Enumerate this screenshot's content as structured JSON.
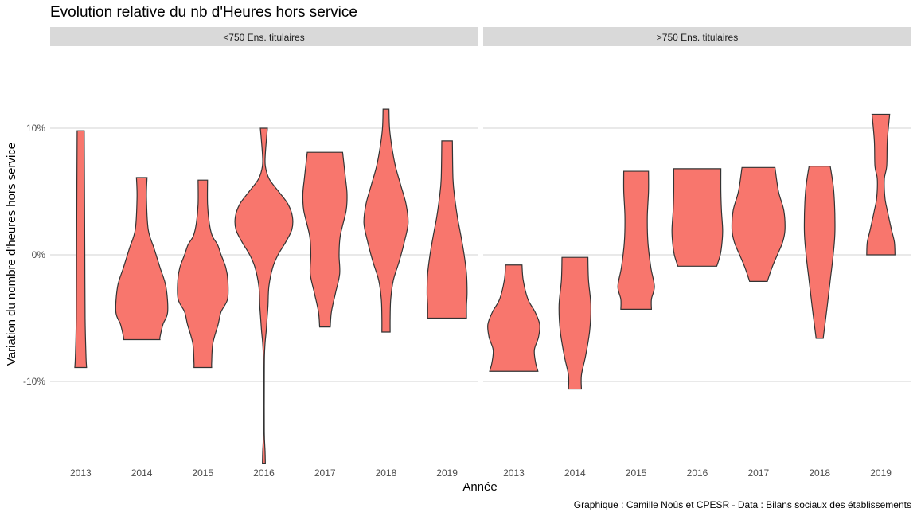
{
  "chart_data": {
    "type": "violin",
    "title": "Evolution relative du nb d'Heures hors service",
    "xlabel": "Année",
    "ylabel": "Variation du nombre d'heures hors service",
    "caption": "Graphique : Camille Noûs et CPESR - Data : Bilans sociaux des établissements",
    "categories": [
      "2013",
      "2014",
      "2015",
      "2016",
      "2017",
      "2018",
      "2019"
    ],
    "y_ticks": [
      {
        "value": 0.1,
        "label": "10%"
      },
      {
        "value": 0.0,
        "label": "0%"
      },
      {
        "value": -0.1,
        "label": "-10%"
      }
    ],
    "ylim": [
      -0.165,
      0.15
    ],
    "grid": true,
    "fill_color": "#f8766d",
    "outline_color": "#333333",
    "panels": [
      {
        "label": "<750 Ens. titulaires",
        "violins": [
          {
            "year": "2013",
            "profile": [
              [
                0.098,
                0.12
              ],
              [
                0.05,
                0.13
              ],
              [
                0,
                0.14
              ],
              [
                -0.05,
                0.15
              ],
              [
                -0.08,
                0.18
              ],
              [
                -0.089,
                0.2
              ]
            ]
          },
          {
            "year": "2014",
            "profile": [
              [
                0.061,
                0.18
              ],
              [
                0.045,
                0.16
              ],
              [
                0.02,
                0.22
              ],
              [
                0.005,
                0.42
              ],
              [
                -0.01,
                0.62
              ],
              [
                -0.025,
                0.82
              ],
              [
                -0.045,
                0.88
              ],
              [
                -0.055,
                0.72
              ],
              [
                -0.065,
                0.62
              ],
              [
                -0.067,
                0.62
              ]
            ]
          },
          {
            "year": "2015",
            "profile": [
              [
                0.059,
                0.16
              ],
              [
                0.04,
                0.16
              ],
              [
                0.025,
                0.22
              ],
              [
                0.015,
                0.32
              ],
              [
                0.008,
                0.5
              ],
              [
                0,
                0.62
              ],
              [
                -0.01,
                0.78
              ],
              [
                -0.02,
                0.85
              ],
              [
                -0.035,
                0.84
              ],
              [
                -0.045,
                0.62
              ],
              [
                -0.055,
                0.52
              ],
              [
                -0.07,
                0.34
              ],
              [
                -0.085,
                0.3
              ],
              [
                -0.089,
                0.3
              ]
            ]
          },
          {
            "year": "2016",
            "profile": [
              [
                0.1,
                0.12
              ],
              [
                0.08,
                0.05
              ],
              [
                0.07,
                0.05
              ],
              [
                0.06,
                0.18
              ],
              [
                0.05,
                0.5
              ],
              [
                0.04,
                0.82
              ],
              [
                0.03,
                0.97
              ],
              [
                0.02,
                0.95
              ],
              [
                0.01,
                0.74
              ],
              [
                0,
                0.48
              ],
              [
                -0.01,
                0.3
              ],
              [
                -0.025,
                0.17
              ],
              [
                -0.04,
                0.14
              ],
              [
                -0.05,
                0.11
              ],
              [
                -0.06,
                0.08
              ],
              [
                -0.07,
                0.04
              ],
              [
                -0.08,
                0.02
              ],
              [
                -0.1,
                0.015
              ],
              [
                -0.14,
                0.015
              ],
              [
                -0.155,
                0.04
              ],
              [
                -0.165,
                0.05
              ]
            ]
          },
          {
            "year": "2017",
            "profile": [
              [
                0.081,
                0.6
              ],
              [
                0.06,
                0.7
              ],
              [
                0.048,
                0.75
              ],
              [
                0.035,
                0.72
              ],
              [
                0.015,
                0.52
              ],
              [
                0,
                0.48
              ],
              [
                -0.015,
                0.5
              ],
              [
                -0.03,
                0.36
              ],
              [
                -0.045,
                0.22
              ],
              [
                -0.057,
                0.18
              ]
            ]
          },
          {
            "year": "2018",
            "profile": [
              [
                0.115,
                0.1
              ],
              [
                0.1,
                0.12
              ],
              [
                0.085,
                0.2
              ],
              [
                0.07,
                0.32
              ],
              [
                0.055,
                0.5
              ],
              [
                0.04,
                0.68
              ],
              [
                0.025,
                0.75
              ],
              [
                0.01,
                0.62
              ],
              [
                -0.005,
                0.45
              ],
              [
                -0.02,
                0.25
              ],
              [
                -0.035,
                0.16
              ],
              [
                -0.05,
                0.14
              ],
              [
                -0.061,
                0.14
              ]
            ]
          },
          {
            "year": "2019",
            "profile": [
              [
                0.09,
                0.18
              ],
              [
                0.06,
                0.2
              ],
              [
                0.045,
                0.26
              ],
              [
                0.03,
                0.35
              ],
              [
                0.015,
                0.47
              ],
              [
                0,
                0.58
              ],
              [
                -0.015,
                0.66
              ],
              [
                -0.03,
                0.68
              ],
              [
                -0.04,
                0.66
              ],
              [
                -0.05,
                0.66
              ]
            ]
          }
        ]
      },
      {
        "label": ">750 Ens. titulaires",
        "violins": [
          {
            "year": "2013",
            "profile": [
              [
                -0.008,
                0.28
              ],
              [
                -0.02,
                0.32
              ],
              [
                -0.035,
                0.48
              ],
              [
                -0.045,
                0.72
              ],
              [
                -0.055,
                0.88
              ],
              [
                -0.065,
                0.84
              ],
              [
                -0.075,
                0.7
              ],
              [
                -0.085,
                0.74
              ],
              [
                -0.092,
                0.82
              ]
            ]
          },
          {
            "year": "2014",
            "profile": [
              [
                -0.002,
                0.44
              ],
              [
                -0.02,
                0.46
              ],
              [
                -0.04,
                0.54
              ],
              [
                -0.06,
                0.5
              ],
              [
                -0.08,
                0.36
              ],
              [
                -0.095,
                0.22
              ],
              [
                -0.106,
                0.22
              ]
            ]
          },
          {
            "year": "2015",
            "profile": [
              [
                0.066,
                0.42
              ],
              [
                0.05,
                0.42
              ],
              [
                0.03,
                0.38
              ],
              [
                0.01,
                0.4
              ],
              [
                -0.01,
                0.5
              ],
              [
                -0.025,
                0.62
              ],
              [
                -0.035,
                0.52
              ],
              [
                -0.043,
                0.52
              ]
            ]
          },
          {
            "year": "2016",
            "profile": [
              [
                0.068,
                0.8
              ],
              [
                0.05,
                0.8
              ],
              [
                0.035,
                0.82
              ],
              [
                0.02,
                0.86
              ],
              [
                0.01,
                0.84
              ],
              [
                0,
                0.78
              ],
              [
                -0.009,
                0.66
              ]
            ]
          },
          {
            "year": "2017",
            "profile": [
              [
                0.069,
                0.56
              ],
              [
                0.05,
                0.68
              ],
              [
                0.035,
                0.86
              ],
              [
                0.02,
                0.9
              ],
              [
                0.01,
                0.82
              ],
              [
                0,
                0.64
              ],
              [
                -0.01,
                0.46
              ],
              [
                -0.021,
                0.3
              ]
            ]
          },
          {
            "year": "2018",
            "profile": [
              [
                0.07,
                0.36
              ],
              [
                0.05,
                0.48
              ],
              [
                0.02,
                0.52
              ],
              [
                0,
                0.46
              ],
              [
                -0.02,
                0.36
              ],
              [
                -0.04,
                0.26
              ],
              [
                -0.055,
                0.18
              ],
              [
                -0.066,
                0.12
              ]
            ]
          },
          {
            "year": "2019",
            "profile": [
              [
                0.111,
                0.3
              ],
              [
                0.09,
                0.22
              ],
              [
                0.07,
                0.2
              ],
              [
                0.06,
                0.12
              ],
              [
                0.045,
                0.14
              ],
              [
                0.035,
                0.22
              ],
              [
                0.02,
                0.36
              ],
              [
                0.01,
                0.46
              ],
              [
                0,
                0.48
              ]
            ]
          }
        ]
      }
    ]
  }
}
